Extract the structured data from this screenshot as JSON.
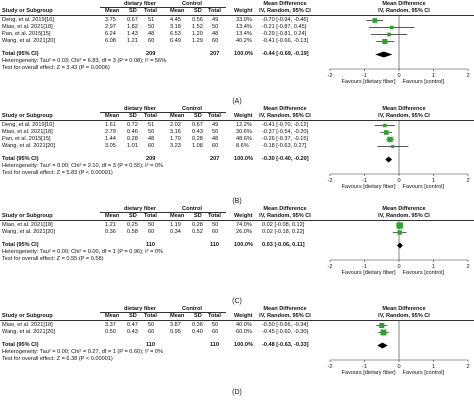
{
  "panels": [
    {
      "id": "A",
      "label": "(A)",
      "header": {
        "study": "Study or Subgroup",
        "group1": "dietary fiber",
        "group2": "Control",
        "mean": "Mean",
        "sd": "SD",
        "total": "Total",
        "weight": "Weight",
        "md_title": "Mean Difference",
        "md_sub": "IV, Random, 95% CI",
        "plot_title": "Mean Difference",
        "plot_sub": "IV, Random, 95% CI"
      },
      "studies": [
        {
          "name": "Deng, et al. 2019[16]",
          "m1": "3.75",
          "sd1": "0.67",
          "n1": "51",
          "m2": "4.45",
          "sd2": "0.56",
          "n2": "49",
          "weight": "33.0%",
          "ci": "-0.70 [-0.94, -0.46]"
        },
        {
          "name": "Miao, et al. 2021[18]",
          "m1": "2.97",
          "sd1": "1.82",
          "n1": "50",
          "m2": "3.18",
          "sd2": "1.52",
          "n2": "50",
          "weight": "13.4%",
          "ci": "-0.21 [-0.87, 0.45]"
        },
        {
          "name": "Pan, et al. 2015[15]",
          "m1": "6.24",
          "sd1": "1.43",
          "n1": "48",
          "m2": "6.53",
          "sd2": "1.20",
          "n2": "48",
          "weight": "13.4%",
          "ci": "-0.29 [-0.81, 0.24]"
        },
        {
          "name": "Wang, et al. 2021[20]",
          "m1": "6.08",
          "sd1": "1.21",
          "n1": "60",
          "m2": "6.49",
          "sd2": "1.29",
          "n2": "60",
          "weight": "40.2%",
          "ci": "-0.41 [-0.66, -0.13]"
        }
      ],
      "total": {
        "label": "Total (95% CI)",
        "n1": "209",
        "n2": "207",
        "weight": "100.0%",
        "ci": "-0.44 [-0.69, -0.19]"
      },
      "heterogeneity": "Heterogeneity: Tau² = 0.03; Chi² = 6.83, df = 3 (P = 0.08); I² = 56%",
      "overall": "Test for overall effect: Z = 3.43 (P = 0.0006)",
      "axis_ticks": [
        "-2",
        "-1",
        "0",
        "1",
        "2"
      ],
      "favours_left": "Favours [dietary fiber]",
      "favours_right": "Favours [control]"
    },
    {
      "id": "B",
      "label": "(B)",
      "header": {
        "study": "Study or Subgroup",
        "group1": "dietary fiber",
        "group2": "Control",
        "mean": "Mean",
        "sd": "SD",
        "total": "Total",
        "weight": "Weight",
        "md_title": "Mean Difference",
        "md_sub": "IV, Random, 95% CI",
        "plot_title": "Mean Difference",
        "plot_sub": "IV, Random, 95% CI"
      },
      "studies": [
        {
          "name": "Deng, et al. 2019[16]",
          "m1": "1.61",
          "sd1": "0.72",
          "n1": "51",
          "m2": "2.02",
          "sd2": "0.67",
          "n2": "49",
          "weight": "12.2%",
          "ci": "-0.41 [-0.70, -0.12]"
        },
        {
          "name": "Miao, et al. 2021[18]",
          "m1": "2.79",
          "sd1": "0.46",
          "n1": "50",
          "m2": "3.16",
          "sd2": "0.43",
          "n2": "50",
          "weight": "30.6%",
          "ci": "-0.37 [-0.54, -0.20]"
        },
        {
          "name": "Pan, et al. 2015[15]",
          "m1": "1.44",
          "sd1": "0.28",
          "n1": "48",
          "m2": "1.70",
          "sd2": "0.28",
          "n2": "48",
          "weight": "48.6%",
          "ci": "-0.26 [-0.37, -0.15]"
        },
        {
          "name": "Wang, et al. 2021[20]",
          "m1": "3.05",
          "sd1": "1.01",
          "n1": "60",
          "m2": "3.23",
          "sd2": "1.08",
          "n2": "60",
          "weight": "8.6%",
          "ci": "-0.18 [-0.63, 0.27]"
        }
      ],
      "total": {
        "label": "Total (95% CI)",
        "n1": "209",
        "n2": "207",
        "weight": "100.0%",
        "ci": "-0.30 [-0.40, -0.20]"
      },
      "heterogeneity": "Heterogeneity: Tau² = 0.00; Chi² = 2.10, df = 3 (P = 0.55); I² = 0%",
      "overall": "Test for overall effect: Z = 5.83 (P < 0.00001)",
      "axis_ticks": [
        "-2",
        "-1",
        "0",
        "1",
        "2"
      ],
      "favours_left": "Favours [dietary fiber]",
      "favours_right": "Favours [control]"
    },
    {
      "id": "C",
      "label": "(C)",
      "header": {
        "study": "Study or Subgroup",
        "group1": "dietary fiber",
        "group2": "Control",
        "mean": "Mean",
        "sd": "SD",
        "total": "Total",
        "weight": "Weight",
        "md_title": "Mean Difference",
        "md_sub": "IV, Random, 95% CI",
        "plot_title": "Mean Difference",
        "plot_sub": "IV, Random, 95% CI"
      },
      "studies": [
        {
          "name": "Miao, et al. 2021[18]",
          "m1": "1.21",
          "sd1": "0.25",
          "n1": "50",
          "m2": "1.19",
          "sd2": "0.28",
          "n2": "50",
          "weight": "74.0%",
          "ci": "0.02 [-0.08, 0.12]"
        },
        {
          "name": "Wang, et al. 2021[20]",
          "m1": "0.36",
          "sd1": "0.58",
          "n1": "60",
          "m2": "0.34",
          "sd2": "0.52",
          "n2": "60",
          "weight": "26.0%",
          "ci": "0.02 [-0.18, 0.22]"
        }
      ],
      "total": {
        "label": "Total (95% CI)",
        "n1": "110",
        "n2": "110",
        "weight": "100.0%",
        "ci": "0.03 [-0.06, 0.11]"
      },
      "heterogeneity": "Heterogeneity: Tau² = 0.00; Chi² = 0.00, df = 1 (P = 0.96); I² = 0%",
      "overall": "Test for overall effect: Z = 0.55 (P = 0.58)",
      "axis_ticks": [
        "-2",
        "-1",
        "0",
        "1",
        "2"
      ],
      "favours_left": "Favours [dietary fiber]",
      "favours_right": "Favours [control]"
    },
    {
      "id": "D",
      "label": "(D)",
      "header": {
        "study": "Study or Subgroup",
        "group1": "dietary fiber",
        "group2": "Control",
        "mean": "Mean",
        "sd": "SD",
        "total": "Total",
        "weight": "Weight",
        "md_title": "Mean Difference",
        "md_sub": "IV, Random, 95% CI",
        "plot_title": "Mean Difference",
        "plot_sub": "IV, Random, 95% CI"
      },
      "studies": [
        {
          "name": "Miao, et al. 2021[18]",
          "m1": "3.37",
          "sd1": "0.47",
          "n1": "50",
          "m2": "3.87",
          "sd2": "0.36",
          "n2": "50",
          "weight": "40.0%",
          "ci": "-0.50 [-0.66, -0.34]"
        },
        {
          "name": "Wang, et al. 2021[20]",
          "m1": "0.50",
          "sd1": "0.43",
          "n1": "60",
          "m2": "0.95",
          "sd2": "0.40",
          "n2": "60",
          "weight": "60.0%",
          "ci": "-0.45 [-0.60, -0.30]"
        }
      ],
      "total": {
        "label": "Total (95% CI)",
        "n1": "110",
        "n2": "110",
        "weight": "100.0%",
        "ci": "-0.48 [-0.63, -0.33]"
      },
      "heterogeneity": "Heterogeneity: Tau² = 0.00; Chi² = 0.27, df = 1 (P = 0.60); I² = 0%",
      "overall": "Test for overall effect: Z = 6.38 (P < 0.00001)",
      "axis_ticks": [
        "-2",
        "-1",
        "0",
        "1",
        "2"
      ],
      "favours_left": "Favours [dietary fiber]",
      "favours_right": "Favours [control]"
    }
  ],
  "colors": {
    "study_marker": "#2aa52a",
    "total_marker": "#000000",
    "line": "#333333"
  },
  "chart_data": [
    {
      "type": "forest",
      "panel": "A",
      "xlim": [
        -2,
        2
      ],
      "studies": [
        {
          "name": "Deng, et al. 2019[16]",
          "md": -0.7,
          "lo": -0.94,
          "hi": -0.46,
          "weight": 33.0
        },
        {
          "name": "Miao, et al. 2021[18]",
          "md": -0.21,
          "lo": -0.87,
          "hi": 0.45,
          "weight": 13.4
        },
        {
          "name": "Pan, et al. 2015[15]",
          "md": -0.29,
          "lo": -0.81,
          "hi": 0.24,
          "weight": 13.4
        },
        {
          "name": "Wang, et al. 2021[20]",
          "md": -0.41,
          "lo": -0.66,
          "hi": -0.13,
          "weight": 40.2
        }
      ],
      "total": {
        "md": -0.44,
        "lo": -0.69,
        "hi": -0.19
      }
    },
    {
      "type": "forest",
      "panel": "B",
      "xlim": [
        -2,
        2
      ],
      "studies": [
        {
          "name": "Deng, et al. 2019[16]",
          "md": -0.41,
          "lo": -0.7,
          "hi": -0.12,
          "weight": 12.2
        },
        {
          "name": "Miao, et al. 2021[18]",
          "md": -0.37,
          "lo": -0.54,
          "hi": -0.2,
          "weight": 30.6
        },
        {
          "name": "Pan, et al. 2015[15]",
          "md": -0.26,
          "lo": -0.37,
          "hi": -0.15,
          "weight": 48.6
        },
        {
          "name": "Wang, et al. 2021[20]",
          "md": -0.18,
          "lo": -0.63,
          "hi": 0.27,
          "weight": 8.6
        }
      ],
      "total": {
        "md": -0.3,
        "lo": -0.4,
        "hi": -0.2
      }
    },
    {
      "type": "forest",
      "panel": "C",
      "xlim": [
        -2,
        2
      ],
      "studies": [
        {
          "name": "Miao, et al. 2021[18]",
          "md": 0.02,
          "lo": -0.08,
          "hi": 0.12,
          "weight": 74.0
        },
        {
          "name": "Wang, et al. 2021[20]",
          "md": 0.02,
          "lo": -0.18,
          "hi": 0.22,
          "weight": 26.0
        }
      ],
      "total": {
        "md": 0.03,
        "lo": -0.06,
        "hi": 0.11
      }
    },
    {
      "type": "forest",
      "panel": "D",
      "xlim": [
        -2,
        2
      ],
      "studies": [
        {
          "name": "Miao, et al. 2021[18]",
          "md": -0.5,
          "lo": -0.66,
          "hi": -0.34,
          "weight": 40.0
        },
        {
          "name": "Wang, et al. 2021[20]",
          "md": -0.45,
          "lo": -0.6,
          "hi": -0.3,
          "weight": 60.0
        }
      ],
      "total": {
        "md": -0.48,
        "lo": -0.63,
        "hi": -0.33
      }
    }
  ]
}
